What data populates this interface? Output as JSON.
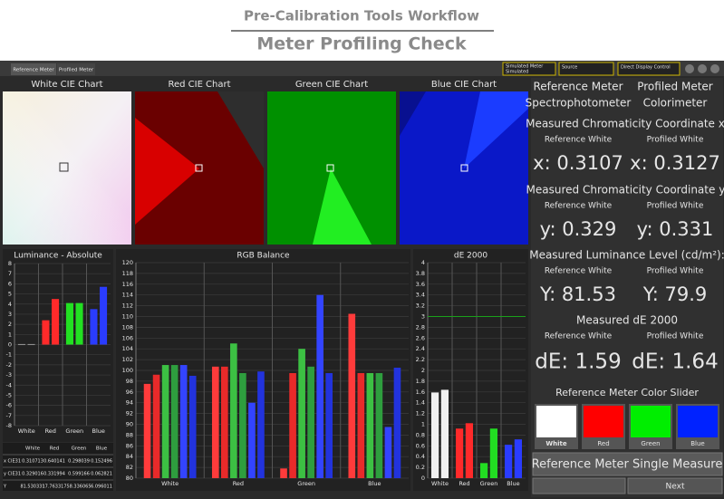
{
  "header": {
    "title": "Pre-Calibration Tools Workflow",
    "subtitle": "Meter Profiling Check"
  },
  "tabs": [
    "Reference Meter",
    "Profiled Meter"
  ],
  "toolbar": {
    "meter": "Simulated Meter",
    "meter_value": "Simulated",
    "source": "Source",
    "display": "Direct Display Control"
  },
  "cie_charts": [
    "White CIE Chart",
    "Red CIE Chart",
    "Green CIE Chart",
    "Blue CIE Chart"
  ],
  "luminance": {
    "type": "bar",
    "title": "Luminance - Absolute",
    "categories": [
      "White",
      "Red",
      "Green",
      "Blue"
    ],
    "colors": [
      "#dcdcdc",
      "#ff2a2a",
      "#22e022",
      "#2a3cff"
    ],
    "series": [
      {
        "values": [
          0.05,
          2.4,
          4.1,
          3.5
        ]
      },
      {
        "values": [
          0.05,
          4.5,
          4.1,
          5.7
        ]
      }
    ],
    "ylim": [
      -8,
      8
    ],
    "yticks": [
      -8,
      -7,
      -6,
      -5,
      -4,
      -3,
      -2,
      -1,
      0,
      1,
      2,
      3,
      4,
      5,
      6,
      7,
      8
    ]
  },
  "rgb_balance": {
    "type": "bar",
    "title": "RGB Balance",
    "categories": [
      "White",
      "Red",
      "Green",
      "Blue"
    ],
    "series": [
      {
        "color": "#ff3b3b",
        "values": [
          97.5,
          100.7,
          81.8,
          110.5
        ]
      },
      {
        "color": "#e82a2a",
        "values": [
          99.2,
          100.7,
          99.5,
          99.5
        ]
      },
      {
        "color": "#3cc043",
        "values": [
          101,
          105,
          104,
          99.5
        ]
      },
      {
        "color": "#2e9e3e",
        "values": [
          101,
          99.5,
          100.7,
          99.5
        ]
      },
      {
        "color": "#3344ff",
        "values": [
          101,
          94,
          114,
          89.5
        ]
      },
      {
        "color": "#2233dd",
        "values": [
          99,
          99.8,
          99.5,
          100.5
        ]
      }
    ],
    "ylim": [
      80,
      120
    ],
    "yticks": [
      80,
      82,
      84,
      86,
      88,
      90,
      92,
      94,
      96,
      98,
      100,
      102,
      104,
      106,
      108,
      110,
      112,
      114,
      116,
      118,
      120
    ]
  },
  "de2000": {
    "type": "bar",
    "title": "dE 2000",
    "categories": [
      "White",
      "Red",
      "Green",
      "Blue"
    ],
    "colors": [
      "#f0f0f0",
      "#ff2a2a",
      "#22dd22",
      "#2a3cff"
    ],
    "series": [
      {
        "values": [
          1.59,
          0.92,
          0.28,
          0.62
        ]
      },
      {
        "values": [
          1.64,
          1.02,
          0.92,
          0.72
        ]
      }
    ],
    "ref_line": {
      "value": 3,
      "color": "#1aa01a"
    },
    "ylim": [
      0,
      4
    ],
    "yticks": [
      0,
      0.2,
      0.4,
      0.6,
      0.8,
      1,
      1.2,
      1.4,
      1.6,
      1.8,
      2,
      2.2,
      2.4,
      2.6,
      2.8,
      3,
      3.2,
      3.4,
      3.6,
      3.8,
      4
    ]
  },
  "table": {
    "header": [
      "White",
      "Red",
      "Green",
      "Blue"
    ],
    "rows": [
      {
        "label": "x CIE31",
        "cells": [
          "0.310713",
          "0.640141",
          "0.298039",
          "0.152496"
        ]
      },
      {
        "label": "y CIE31",
        "cells": [
          "0.329016",
          "0.331994",
          "0.599166",
          "0.062821"
        ]
      },
      {
        "label": "Y",
        "cells": [
          "81.530331",
          "17.763317",
          "58.336065",
          "6.096011"
        ]
      }
    ]
  },
  "panel": {
    "meters": [
      {
        "name": "Reference Meter",
        "kind": "Spectrophotometer"
      },
      {
        "name": "Profiled Meter",
        "kind": "Colorimeter"
      }
    ],
    "measurements": [
      {
        "heading": "Measured Chromaticity Coordinate x:",
        "labels": [
          "Reference White",
          "Profiled White"
        ],
        "values": [
          "x: 0.3107",
          "x: 0.3127"
        ]
      },
      {
        "heading": "Measured Chromaticity Coordinate y:",
        "labels": [
          "Reference White",
          "Profiled White"
        ],
        "values": [
          "y: 0.329",
          "y: 0.331"
        ]
      },
      {
        "heading": "Measured Luminance Level (cd/m²):",
        "labels": [
          "Reference White",
          "Profiled White"
        ],
        "values": [
          "Y: 81.53",
          "Y: 79.9"
        ]
      },
      {
        "heading": "Measured dE 2000",
        "labels": [
          "Reference White",
          "Profiled White"
        ],
        "values": [
          "dE: 1.59",
          "dE: 1.64"
        ]
      }
    ],
    "slider": {
      "title": "Reference Meter Color Slider",
      "swatches": [
        {
          "label": "White",
          "color": "#ffffff"
        },
        {
          "label": "Red",
          "color": "#ff0000"
        },
        {
          "label": "Green",
          "color": "#00ee00"
        },
        {
          "label": "Blue",
          "color": "#0022ff"
        }
      ]
    },
    "buttons": {
      "measure": "Reference Meter Single Measure",
      "next": "Next"
    }
  }
}
